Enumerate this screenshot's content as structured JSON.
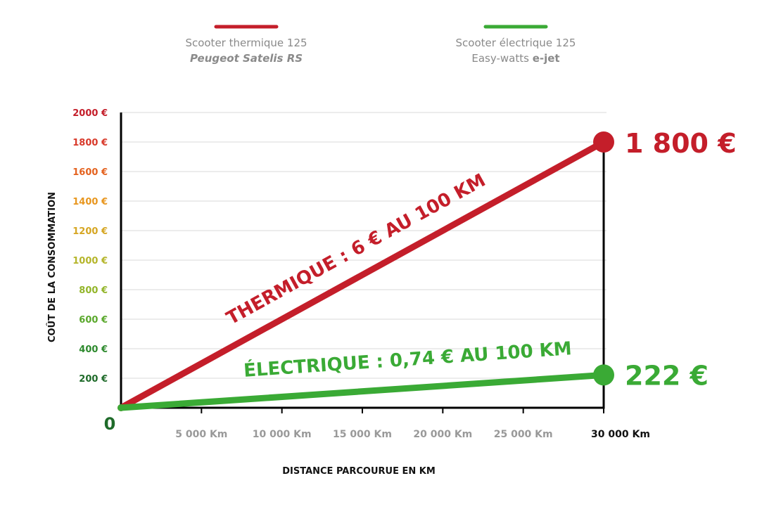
{
  "legend": [
    {
      "line1": "Scooter thermique 125",
      "line2_parts": [
        {
          "text": "Peugeot Satelis RS",
          "style": "italic"
        }
      ],
      "color": "#c41e2a"
    },
    {
      "line1": "Scooter électrique 125",
      "line2_parts": [
        {
          "text": "Easy-watts ",
          "style": "normal"
        },
        {
          "text": "e-jet",
          "style": "bold"
        }
      ],
      "color": "#3aaa35"
    }
  ],
  "chart_data": {
    "type": "line",
    "xlabel": "DISTANCE PARCOURUE EN KM",
    "ylabel": "COÛT DE LA CONSOMMATION",
    "xlim": [
      0,
      30000
    ],
    "ylim": [
      0,
      2000
    ],
    "x_ticks": [
      {
        "value": 5000,
        "label": "5 000 Km"
      },
      {
        "value": 10000,
        "label": "10 000 Km"
      },
      {
        "value": 15000,
        "label": "15 000 Km"
      },
      {
        "value": 20000,
        "label": "20 000 Km"
      },
      {
        "value": 25000,
        "label": "25 000 Km"
      },
      {
        "value": 30000,
        "label": "30 000 Km"
      }
    ],
    "y_ticks": [
      {
        "value": 200,
        "label": "200 €",
        "color": "#1f6b2a"
      },
      {
        "value": 400,
        "label": "400 €",
        "color": "#2e8a2e"
      },
      {
        "value": 600,
        "label": "600 €",
        "color": "#5aa82c"
      },
      {
        "value": 800,
        "label": "800 €",
        "color": "#93b52a"
      },
      {
        "value": 1000,
        "label": "1000 €",
        "color": "#b5b52a"
      },
      {
        "value": 1200,
        "label": "1200 €",
        "color": "#d6a623"
      },
      {
        "value": 1400,
        "label": "1400 €",
        "color": "#e8961e"
      },
      {
        "value": 1600,
        "label": "1600 €",
        "color": "#e4621f"
      },
      {
        "value": 1800,
        "label": "1800 €",
        "color": "#d8392a"
      },
      {
        "value": 2000,
        "label": "2000 €",
        "color": "#c41e2a"
      }
    ],
    "zero_label": "0",
    "grid": true,
    "legend_position": "top",
    "series": [
      {
        "name": "Scooter thermique 125",
        "color": "#c41e2a",
        "x": [
          0,
          30000
        ],
        "y": [
          0,
          1800
        ],
        "line_label": "THERMIQUE : 6 € AU 100 KM",
        "end_label": "1 800 €"
      },
      {
        "name": "Scooter électrique 125",
        "color": "#3aaa35",
        "x": [
          0,
          30000
        ],
        "y": [
          0,
          222
        ],
        "line_label": "ÉLECTRIQUE : 0,74 € AU 100 KM",
        "end_label": "222 €"
      }
    ]
  }
}
